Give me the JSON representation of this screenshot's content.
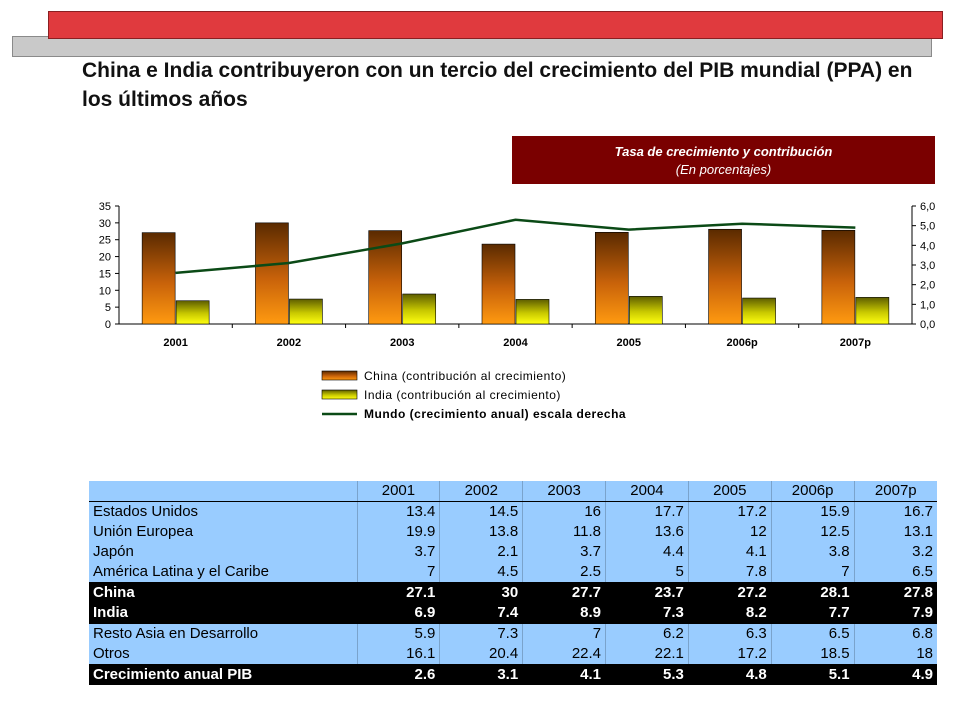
{
  "title": "China e India contribuyeron con un tercio del crecimiento del PIB mundial  (PPA) en los últimos años",
  "chart_header": {
    "title": "Tasa de crecimiento  y contribución",
    "subtitle": "(En porcentajes)"
  },
  "colors": {
    "banner_red": "#e03a3e",
    "banner_gray": "#c9c9c9",
    "header_bg": "#7a0000",
    "china_bar": "#e67e0a",
    "india_bar": "#f2f000",
    "world_line": "#0b4a16",
    "table_row": "#99ccff",
    "table_dark_row": "#000000"
  },
  "chart_data": {
    "type": "bar",
    "categories": [
      "2001",
      "2002",
      "2003",
      "2004",
      "2005",
      "2006p",
      "2007p"
    ],
    "series": [
      {
        "name": "China (contribución al crecimiento)",
        "kind": "bar",
        "axis": "left",
        "values": [
          27.1,
          30,
          27.7,
          23.7,
          27.2,
          28.1,
          27.8
        ]
      },
      {
        "name": "India (contribución al crecimiento)",
        "kind": "bar",
        "axis": "left",
        "values": [
          6.9,
          7.4,
          8.9,
          7.3,
          8.2,
          7.7,
          7.9
        ]
      },
      {
        "name": "Mundo (crecimiento anual) escala derecha",
        "kind": "line",
        "axis": "right",
        "values": [
          2.6,
          3.1,
          4.1,
          5.3,
          4.8,
          5.1,
          4.9
        ]
      }
    ],
    "y_left": {
      "ylim": [
        0,
        35
      ],
      "ticks": [
        "0",
        "5",
        "10",
        "15",
        "20",
        "25",
        "30",
        "35"
      ]
    },
    "y_right": {
      "ylim": [
        0,
        6
      ],
      "ticks": [
        "0,0",
        "1,0",
        "2,0",
        "3,0",
        "4,0",
        "5,0",
        "6,0"
      ]
    },
    "legend_position": "bottom",
    "grid": false
  },
  "table": {
    "columns": [
      "",
      "2001",
      "2002",
      "2003",
      "2004",
      "2005",
      "2006p",
      "2007p"
    ],
    "rows": [
      {
        "label": "Estados Unidos",
        "values": [
          "13.4",
          "14.5",
          "16",
          "17.7",
          "17.2",
          "15.9",
          "16.7"
        ],
        "style": "normal"
      },
      {
        "label": "Unión Europea",
        "values": [
          "19.9",
          "13.8",
          "11.8",
          "13.6",
          "12",
          "12.5",
          "13.1"
        ],
        "style": "normal"
      },
      {
        "label": "Japón",
        "values": [
          "3.7",
          "2.1",
          "3.7",
          "4.4",
          "4.1",
          "3.8",
          "3.2"
        ],
        "style": "normal"
      },
      {
        "label": "América Latina y el Caribe",
        "values": [
          "7",
          "4.5",
          "2.5",
          "5",
          "7.8",
          "7",
          "6.5"
        ],
        "style": "normal"
      },
      {
        "label": "China",
        "values": [
          "27.1",
          "30",
          "27.7",
          "23.7",
          "27.2",
          "28.1",
          "27.8"
        ],
        "style": "dark"
      },
      {
        "label": "India",
        "values": [
          "6.9",
          "7.4",
          "8.9",
          "7.3",
          "8.2",
          "7.7",
          "7.9"
        ],
        "style": "dark"
      },
      {
        "label": "Resto Asia en Desarrollo",
        "values": [
          "5.9",
          "7.3",
          "7",
          "6.2",
          "6.3",
          "6.5",
          "6.8"
        ],
        "style": "normal"
      },
      {
        "label": "Otros",
        "values": [
          "16.1",
          "20.4",
          "22.4",
          "22.1",
          "17.2",
          "18.5",
          "18"
        ],
        "style": "normal"
      },
      {
        "label": "Crecimiento anual PIB",
        "values": [
          "2.6",
          "3.1",
          "4.1",
          "5.3",
          "4.8",
          "5.1",
          "4.9"
        ],
        "style": "dark"
      }
    ]
  }
}
